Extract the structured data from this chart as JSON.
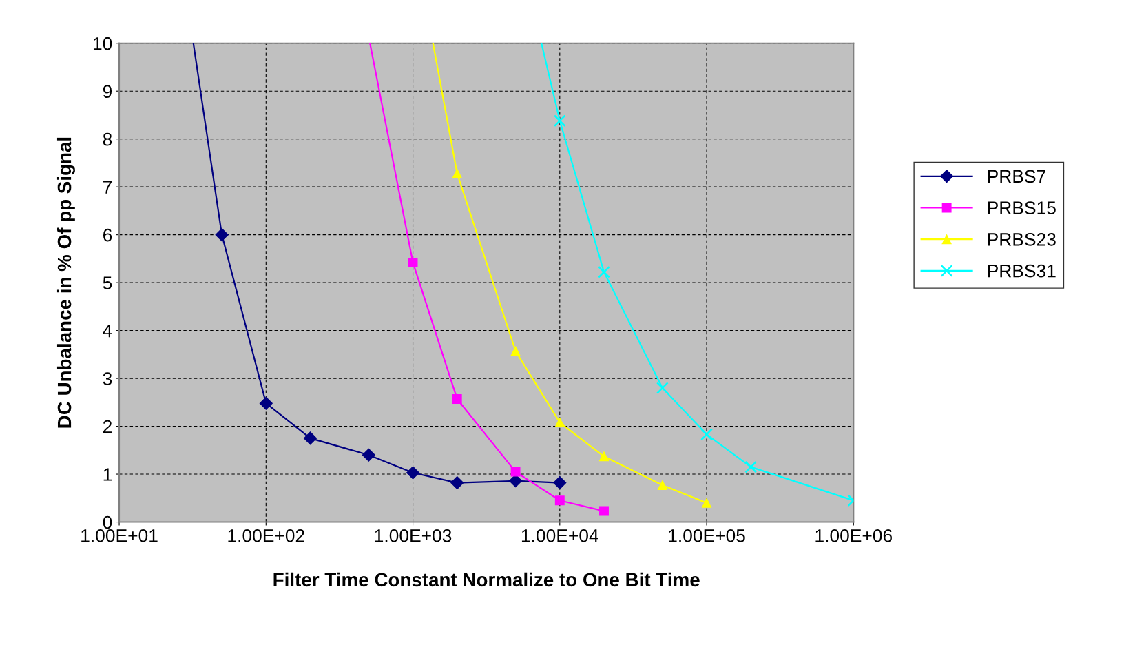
{
  "chart_data": {
    "type": "line",
    "xlabel": "Filter Time Constant Normalize to One Bit Time",
    "ylabel": "DC Unbalance in % Of pp Signal",
    "log": "x",
    "grid": true,
    "legend": "right",
    "line_style": "solid",
    "xlim": [
      10,
      1000000
    ],
    "xticks": [
      {
        "value": 10,
        "label": "1.00E+01"
      },
      {
        "value": 100,
        "label": "1.00E+02"
      },
      {
        "value": 1000,
        "label": "1.00E+03"
      },
      {
        "value": 10000,
        "label": "1.00E+04"
      },
      {
        "value": 100000,
        "label": "1.00E+05"
      },
      {
        "value": 1000000,
        "label": "1.00E+06"
      }
    ],
    "ylim": [
      0,
      10
    ],
    "yticks": [
      0,
      1,
      2,
      3,
      4,
      5,
      6,
      7,
      8,
      9,
      10
    ],
    "series": [
      {
        "name": "PRBS7",
        "color": "#000080",
        "marker": "diamond",
        "x": [
          50,
          100,
          200,
          500,
          1000,
          2000,
          5000,
          10000
        ],
        "values": [
          6.0,
          2.48,
          1.75,
          1.4,
          1.03,
          0.82,
          0.86,
          0.82
        ]
      },
      {
        "name": "PRBS15",
        "color": "#ff00ff",
        "marker": "square",
        "x": [
          1000,
          2000,
          5000,
          10000,
          20000
        ],
        "values": [
          5.42,
          2.57,
          1.05,
          0.45,
          0.23
        ]
      },
      {
        "name": "PRBS23",
        "color": "#ffff00",
        "marker": "triangle",
        "x": [
          2000,
          5000,
          10000,
          20000,
          50000,
          100000
        ],
        "values": [
          7.28,
          3.57,
          2.08,
          1.37,
          0.77,
          0.4
        ]
      },
      {
        "name": "PRBS31",
        "color": "#00ffff",
        "marker": "cross",
        "x": [
          10000,
          20000,
          50000,
          100000,
          200000,
          1000000
        ],
        "values": [
          8.38,
          5.22,
          2.8,
          1.83,
          1.15,
          0.45
        ]
      },
      {
        "color": "#000080",
        "marker": "none",
        "x": [
          32,
          50
        ],
        "values": [
          10,
          6.0
        ]
      },
      {
        "color": "#ff00ff",
        "marker": "none",
        "x": [
          510,
          1000
        ],
        "values": [
          10,
          5.42
        ]
      },
      {
        "color": "#ffff00",
        "marker": "none",
        "x": [
          1370,
          2000
        ],
        "values": [
          10,
          7.28
        ]
      },
      {
        "color": "#00ffff",
        "marker": "none",
        "x": [
          7500,
          10000
        ],
        "values": [
          10,
          8.38
        ]
      }
    ]
  }
}
